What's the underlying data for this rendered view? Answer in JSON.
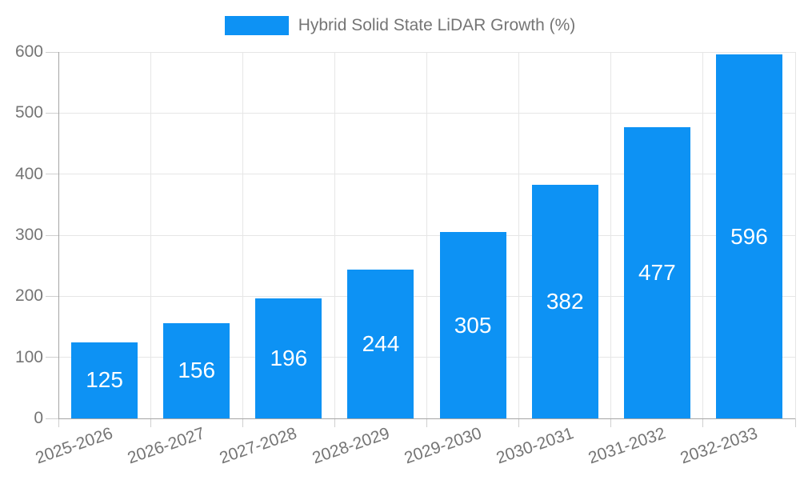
{
  "chart_data": {
    "type": "bar",
    "title": "Hybrid Solid State LiDAR Growth (%)",
    "categories": [
      "2025-2026",
      "2026-2027",
      "2027-2028",
      "2028-2029",
      "2029-2030",
      "2030-2031",
      "2031-2032",
      "2032-2033"
    ],
    "values": [
      125,
      156,
      196,
      244,
      305,
      382,
      477,
      596
    ],
    "xlabel": "",
    "ylabel": "",
    "ylim": [
      0,
      600
    ],
    "yticks": [
      0,
      100,
      200,
      300,
      400,
      500,
      600
    ],
    "grid": true,
    "legend_position": "top",
    "value_labels": "inside-center"
  },
  "colors": {
    "bar": "#0d92f4",
    "grid": "#e6e6e6",
    "axis": "#a6a6a6",
    "tick": "#cfcfcf",
    "text": "#757575",
    "value_label": "#ffffff",
    "background": "#ffffff"
  }
}
